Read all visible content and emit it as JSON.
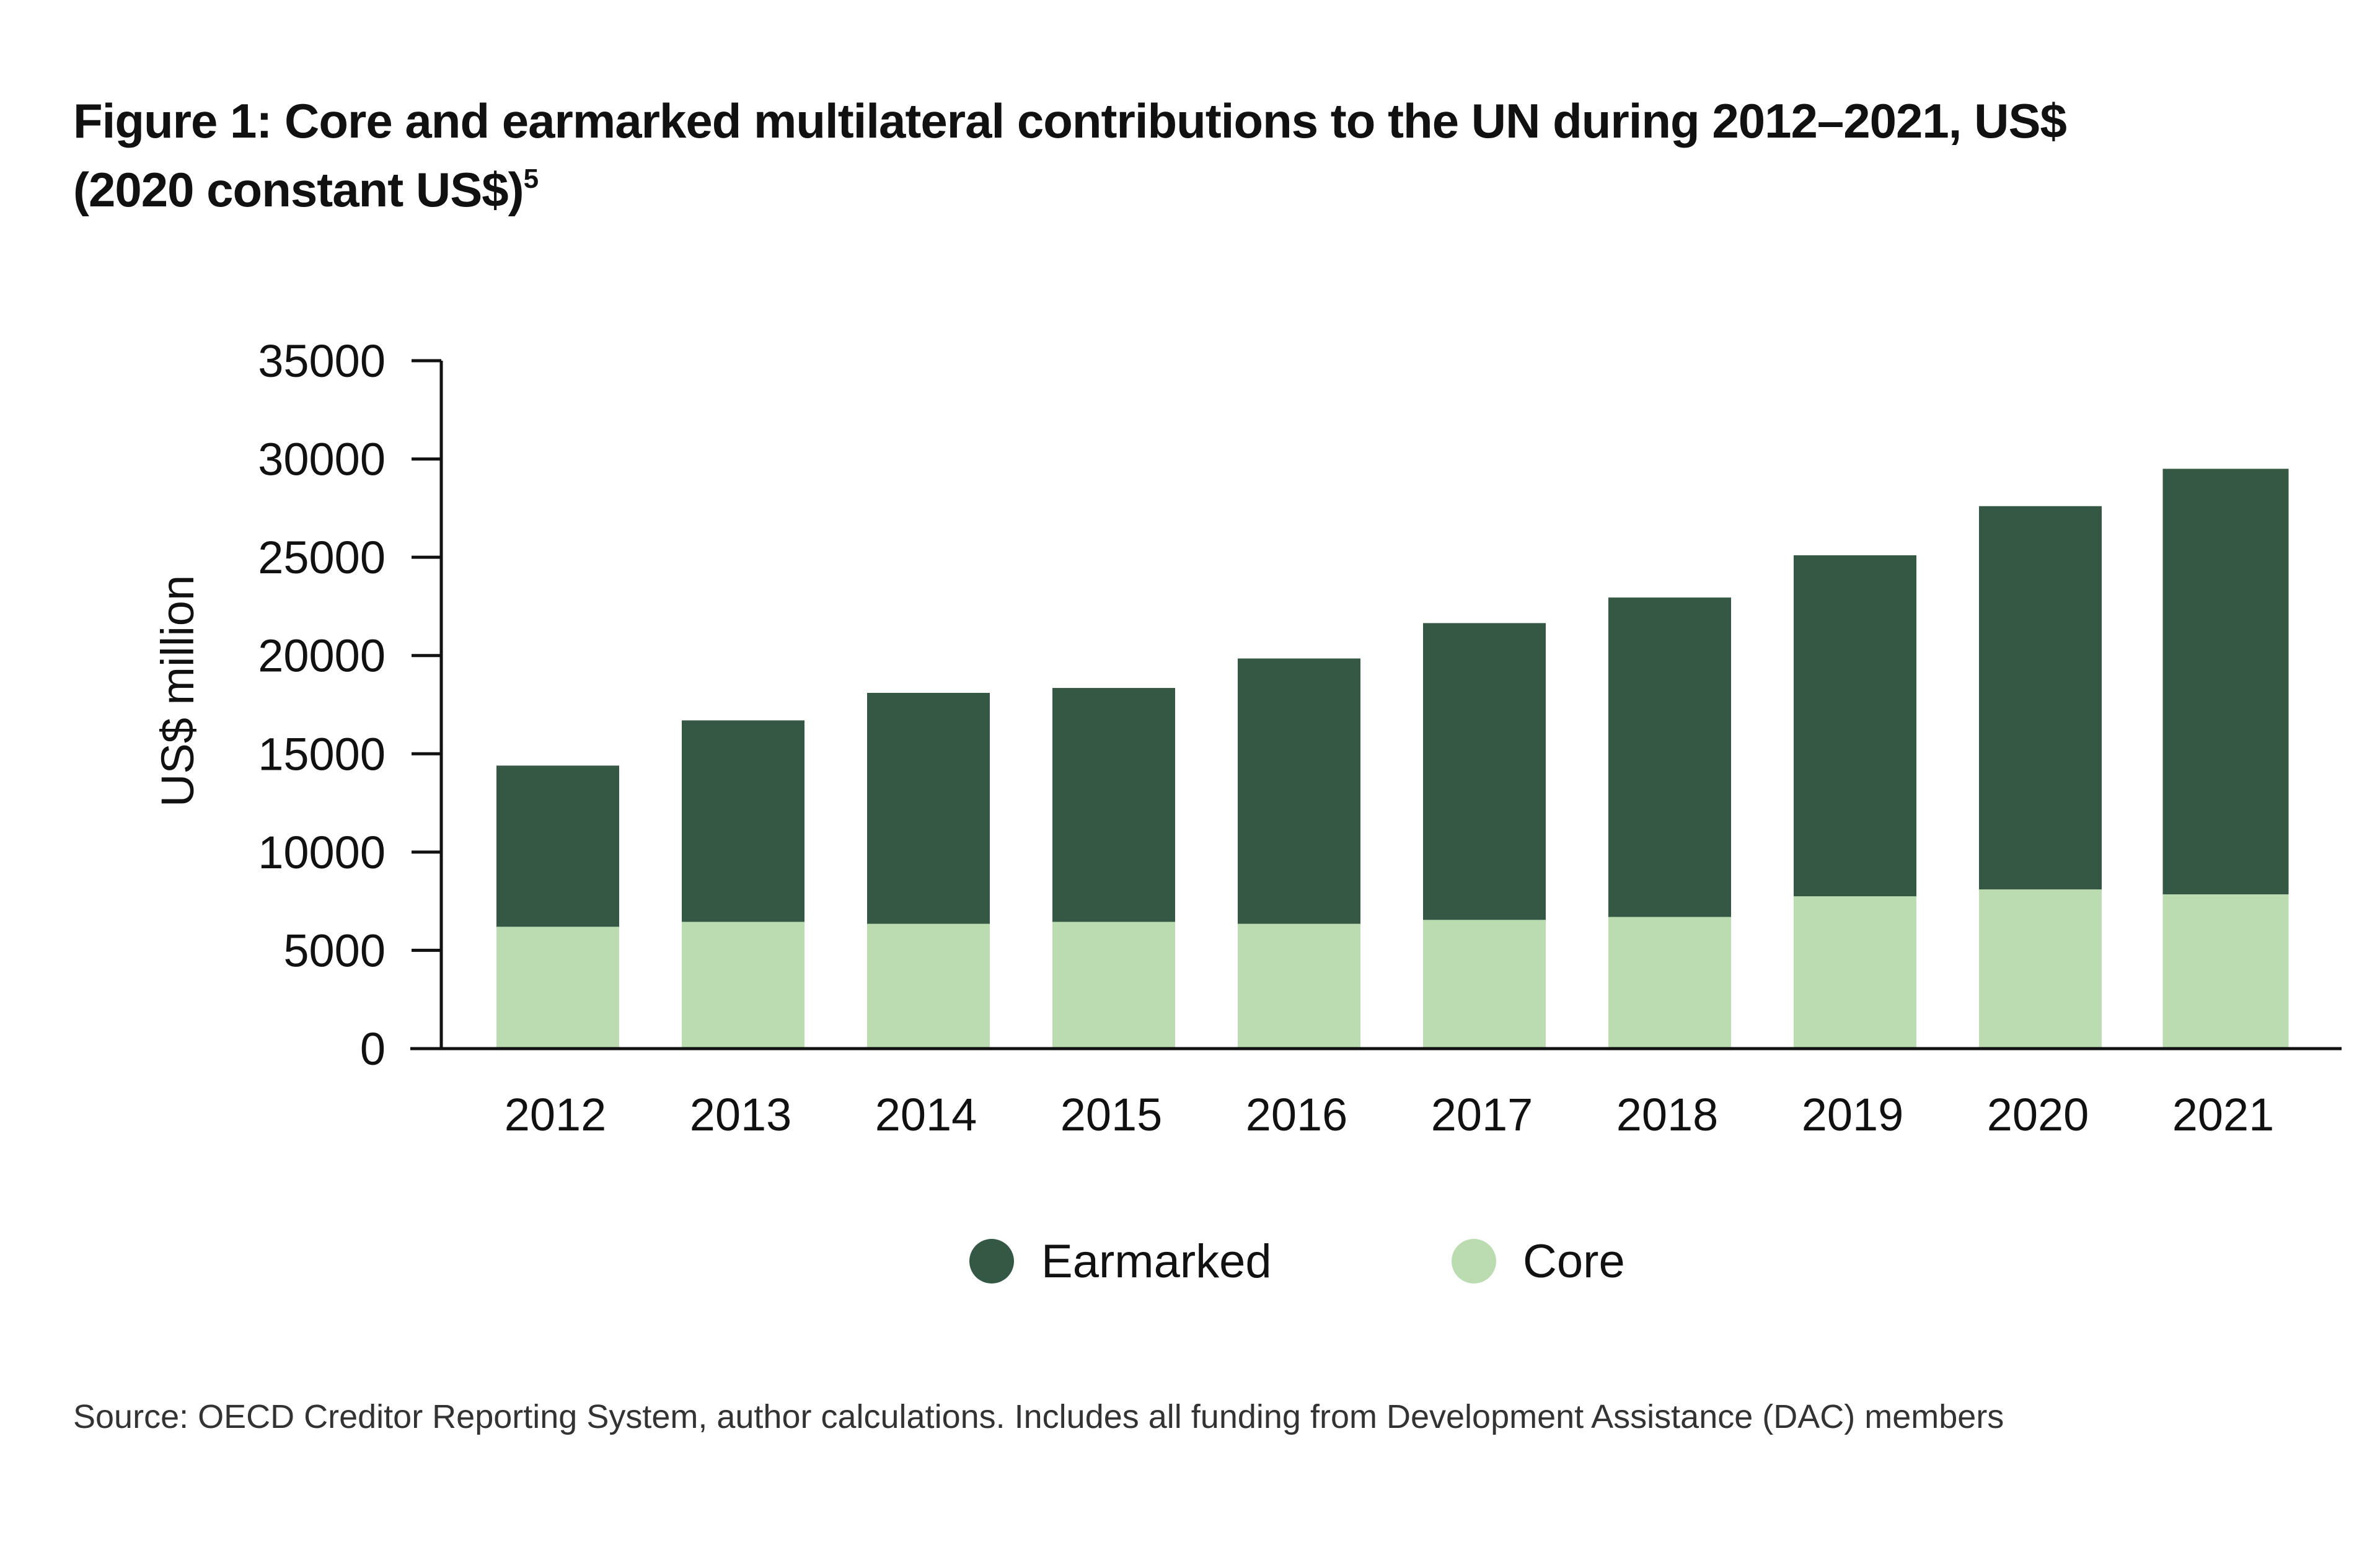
{
  "title": {
    "line1": "Figure 1: Core and earmarked multilateral contributions to the UN during 2012–2021, US$",
    "line2": "(2020 constant US$)",
    "footnote": "5"
  },
  "source": "Source: OECD Creditor Reporting System, author calculations. Includes all funding from Development Assistance (DAC) members",
  "colors": {
    "earmarked": "#355845",
    "core": "#bbdcb0",
    "axis": "#111111"
  },
  "chart_data": {
    "type": "bar",
    "stacked": true,
    "categories": [
      "2012",
      "2013",
      "2014",
      "2015",
      "2016",
      "2017",
      "2018",
      "2019",
      "2020",
      "2021"
    ],
    "series": [
      {
        "name": "Core",
        "values": [
          6200,
          6450,
          6350,
          6450,
          6350,
          6550,
          6700,
          7750,
          8100,
          7850
        ]
      },
      {
        "name": "Earmarked",
        "values": [
          8200,
          10250,
          11750,
          11900,
          13500,
          15100,
          16250,
          17350,
          19500,
          21650
        ]
      }
    ],
    "ylabel": "US$ million",
    "xlabel": "",
    "ylim": [
      0,
      35000
    ],
    "yticks": [
      "0",
      "5000",
      "10000",
      "15000",
      "20000",
      "25000",
      "30000",
      "35000"
    ],
    "grid": false,
    "legend_position": "bottom-center",
    "legend": [
      "Earmarked",
      "Core"
    ]
  }
}
